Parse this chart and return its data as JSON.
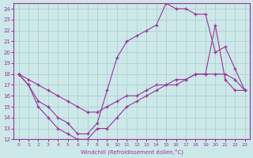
{
  "xlabel": "Windchill (Refroidissement éolien,°C)",
  "bg_color": "#cce8e8",
  "line_color": "#993399",
  "grid_color": "#aacccc",
  "xlim": [
    -0.5,
    23.5
  ],
  "ylim": [
    12,
    24.5
  ],
  "xticks": [
    0,
    1,
    2,
    3,
    4,
    5,
    6,
    7,
    8,
    9,
    10,
    11,
    12,
    13,
    14,
    15,
    16,
    17,
    18,
    19,
    20,
    21,
    22,
    23
  ],
  "yticks": [
    12,
    13,
    14,
    15,
    16,
    17,
    18,
    19,
    20,
    21,
    22,
    23,
    24
  ],
  "line1_x": [
    0,
    1,
    2,
    3,
    4,
    5,
    6,
    7,
    8,
    9,
    10,
    11,
    12,
    13,
    14,
    15,
    16,
    17,
    18,
    19,
    20,
    21,
    22,
    23
  ],
  "line1_y": [
    18,
    17,
    15.5,
    15,
    14,
    13.5,
    12.5,
    12.5,
    13.5,
    16.5,
    19.5,
    21,
    21.5,
    22,
    22.5,
    24.5,
    24,
    24,
    23.5,
    23.5,
    20,
    20.5,
    18.5,
    16.5
  ],
  "line2_x": [
    0,
    1,
    2,
    3,
    4,
    5,
    6,
    7,
    8,
    9,
    10,
    11,
    12,
    13,
    14,
    15,
    16,
    17,
    18,
    19,
    20,
    21,
    22,
    23
  ],
  "line2_y": [
    18,
    17.5,
    17,
    16.5,
    16,
    15.5,
    15,
    14.5,
    14.5,
    15,
    15.5,
    16,
    16,
    16.5,
    17,
    17,
    17.5,
    17.5,
    18,
    18,
    18,
    18,
    17.5,
    16.5
  ],
  "line3_x": [
    0,
    1,
    2,
    3,
    4,
    5,
    6,
    7,
    8,
    9,
    10,
    11,
    12,
    13,
    14,
    15,
    16,
    17,
    18,
    19,
    20,
    21,
    22,
    23
  ],
  "line3_y": [
    18,
    17,
    15,
    14,
    13,
    12.5,
    12,
    12,
    13,
    13,
    14,
    15,
    15.5,
    16,
    16.5,
    17,
    17,
    17.5,
    18,
    18,
    22.5,
    17.5,
    16.5,
    16.5
  ]
}
